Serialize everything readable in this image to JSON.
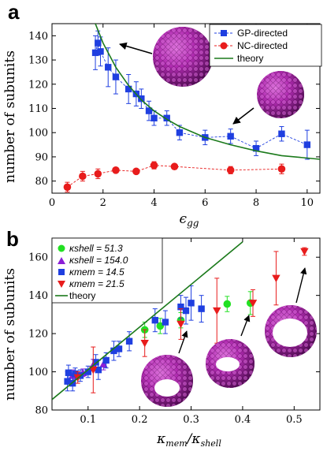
{
  "chart_data": [
    {
      "panel_label": "a",
      "type": "scatter",
      "xlabel": "ϵgg",
      "ylabel": "number of subunits",
      "xlim": [
        0,
        10.5
      ],
      "ylim": [
        75,
        145
      ],
      "xticks": [
        0,
        2,
        4,
        6,
        8,
        10
      ],
      "yticks": [
        80,
        90,
        100,
        110,
        120,
        130,
        140
      ],
      "grid": false,
      "legend_position": "top-right",
      "legend": [
        "GP-directed",
        "NC-directed",
        "theory"
      ],
      "series": [
        {
          "name": "GP-directed",
          "color": "#1f3fe0",
          "marker": "square",
          "line": "dashed",
          "points": [
            {
              "x": 1.7,
              "y": 133,
              "err": 7
            },
            {
              "x": 1.8,
              "y": 137,
              "err": 5
            },
            {
              "x": 1.9,
              "y": 133.5,
              "err": 6
            },
            {
              "x": 2.2,
              "y": 127,
              "err": 8
            },
            {
              "x": 2.5,
              "y": 123,
              "err": 7
            },
            {
              "x": 3.0,
              "y": 118,
              "err": 6
            },
            {
              "x": 3.3,
              "y": 116,
              "err": 5
            },
            {
              "x": 3.5,
              "y": 114,
              "err": 4
            },
            {
              "x": 3.8,
              "y": 109,
              "err": 4
            },
            {
              "x": 4.0,
              "y": 106,
              "err": 3
            },
            {
              "x": 4.5,
              "y": 106,
              "err": 3
            },
            {
              "x": 5.0,
              "y": 100,
              "err": 3
            },
            {
              "x": 6.0,
              "y": 98,
              "err": 3
            },
            {
              "x": 7.0,
              "y": 98.5,
              "err": 3
            },
            {
              "x": 8.0,
              "y": 93.5,
              "err": 3
            },
            {
              "x": 9.0,
              "y": 99.5,
              "err": 3
            },
            {
              "x": 10.0,
              "y": 95,
              "err": 6
            }
          ]
        },
        {
          "name": "NC-directed",
          "color": "#e81c1c",
          "marker": "circle",
          "line": "dashed",
          "points": [
            {
              "x": 0.6,
              "y": 77.5,
              "err": 2
            },
            {
              "x": 1.2,
              "y": 82,
              "err": 2
            },
            {
              "x": 1.8,
              "y": 83,
              "err": 2
            },
            {
              "x": 2.5,
              "y": 84.5,
              "err": 1
            },
            {
              "x": 3.3,
              "y": 84,
              "err": 1
            },
            {
              "x": 4.0,
              "y": 86.5,
              "err": 1.5
            },
            {
              "x": 4.8,
              "y": 86,
              "err": 1
            },
            {
              "x": 7.0,
              "y": 84.5,
              "err": 1.5
            },
            {
              "x": 9.0,
              "y": 85,
              "err": 2
            }
          ]
        },
        {
          "name": "theory",
          "color": "#1b7a1b",
          "line": "solid",
          "points": [
            {
              "x": 1.7,
              "y": 145
            },
            {
              "x": 2.0,
              "y": 137
            },
            {
              "x": 2.5,
              "y": 127
            },
            {
              "x": 3.0,
              "y": 119.5
            },
            {
              "x": 3.5,
              "y": 113.5
            },
            {
              "x": 4.0,
              "y": 109
            },
            {
              "x": 4.5,
              "y": 105.5
            },
            {
              "x": 5.0,
              "y": 102.5
            },
            {
              "x": 6.0,
              "y": 98
            },
            {
              "x": 7.0,
              "y": 95
            },
            {
              "x": 8.0,
              "y": 92.5
            },
            {
              "x": 9.0,
              "y": 90.5
            },
            {
              "x": 10.5,
              "y": 89
            }
          ]
        }
      ]
    },
    {
      "panel_label": "b",
      "type": "scatter",
      "xlabel": "κmem/κshell",
      "ylabel": "number of subunits",
      "xlim": [
        0.03,
        0.55
      ],
      "ylim": [
        80,
        170
      ],
      "xticks": [
        0.1,
        0.2,
        0.3,
        0.4,
        0.5
      ],
      "yticks": [
        80,
        100,
        120,
        140,
        160
      ],
      "grid": false,
      "legend_position": "top-left",
      "legend": [
        "κshell = 51.3",
        "κshell = 154.0",
        "κmem = 14.5",
        "κmem = 21.5",
        "theory"
      ],
      "series": [
        {
          "name": "κshell = 51.3",
          "color": "#22e022",
          "marker": "circle",
          "points": [
            {
              "x": 0.21,
              "y": 122,
              "err": 4
            },
            {
              "x": 0.24,
              "y": 124,
              "err": 4
            },
            {
              "x": 0.28,
              "y": 127,
              "err": 4
            },
            {
              "x": 0.37,
              "y": 135.5,
              "err": 4
            },
            {
              "x": 0.415,
              "y": 136,
              "err": 6
            }
          ]
        },
        {
          "name": "κshell = 154.0",
          "color": "#8b1fd6",
          "marker": "triangle-up",
          "points": [
            {
              "x": 0.07,
              "y": 98,
              "err": 3
            },
            {
              "x": 0.09,
              "y": 99.5,
              "err": 2
            },
            {
              "x": 0.11,
              "y": 103.5,
              "err": 3
            },
            {
              "x": 0.13,
              "y": 104,
              "err": 3
            }
          ]
        },
        {
          "name": "κmem = 14.5",
          "color": "#1f3fe0",
          "marker": "square",
          "points": [
            {
              "x": 0.06,
              "y": 95,
              "err": 5
            },
            {
              "x": 0.062,
              "y": 99.5,
              "err": 4
            },
            {
              "x": 0.07,
              "y": 94,
              "err": 4
            },
            {
              "x": 0.075,
              "y": 99,
              "err": 3
            },
            {
              "x": 0.085,
              "y": 98,
              "err": 3
            },
            {
              "x": 0.1,
              "y": 100,
              "err": 3
            },
            {
              "x": 0.115,
              "y": 105,
              "err": 4
            },
            {
              "x": 0.12,
              "y": 101,
              "err": 5
            },
            {
              "x": 0.135,
              "y": 106,
              "err": 4
            },
            {
              "x": 0.15,
              "y": 111,
              "err": 5
            },
            {
              "x": 0.16,
              "y": 112,
              "err": 4
            },
            {
              "x": 0.18,
              "y": 116,
              "err": 5
            },
            {
              "x": 0.23,
              "y": 127,
              "err": 6
            },
            {
              "x": 0.25,
              "y": 126,
              "err": 6
            },
            {
              "x": 0.28,
              "y": 134,
              "err": 6
            },
            {
              "x": 0.29,
              "y": 132,
              "err": 7
            },
            {
              "x": 0.3,
              "y": 136,
              "err": 9
            },
            {
              "x": 0.32,
              "y": 133,
              "err": 7
            }
          ]
        },
        {
          "name": "κmem = 21.5",
          "color": "#e81c1c",
          "marker": "triangle-down",
          "points": [
            {
              "x": 0.08,
              "y": 97,
              "err": 3
            },
            {
              "x": 0.11,
              "y": 101,
              "err": 12
            },
            {
              "x": 0.21,
              "y": 115,
              "err": 7
            },
            {
              "x": 0.28,
              "y": 125,
              "err": 8
            },
            {
              "x": 0.35,
              "y": 132,
              "err": 17
            },
            {
              "x": 0.42,
              "y": 136,
              "err": 7
            },
            {
              "x": 0.465,
              "y": 149,
              "err": 14
            },
            {
              "x": 0.52,
              "y": 163,
              "err": 2
            }
          ]
        },
        {
          "name": "theory",
          "color": "#1b7a1b",
          "line": "solid",
          "points": [
            {
              "x": 0.03,
              "y": 85.5
            },
            {
              "x": 0.4,
              "y": 168
            }
          ]
        }
      ]
    }
  ]
}
